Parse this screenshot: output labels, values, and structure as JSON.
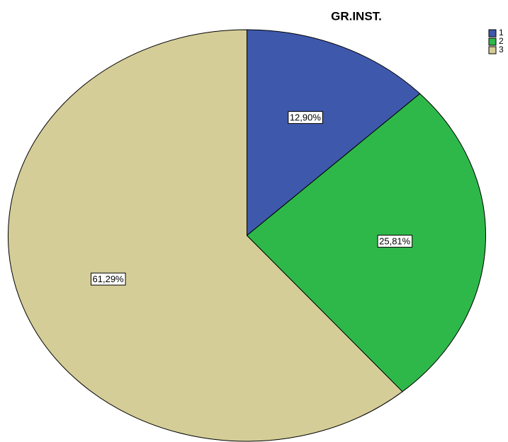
{
  "chart_data": {
    "type": "pie",
    "title": "GR.INST.",
    "categories": [
      "1",
      "2",
      "3"
    ],
    "values": [
      12.9,
      25.81,
      61.29
    ],
    "value_labels": [
      "12,90%",
      "25,81%",
      "61,29%"
    ],
    "colors": [
      "#3e58ac",
      "#2fb84a",
      "#d4cd97"
    ],
    "legend": "top-right"
  }
}
